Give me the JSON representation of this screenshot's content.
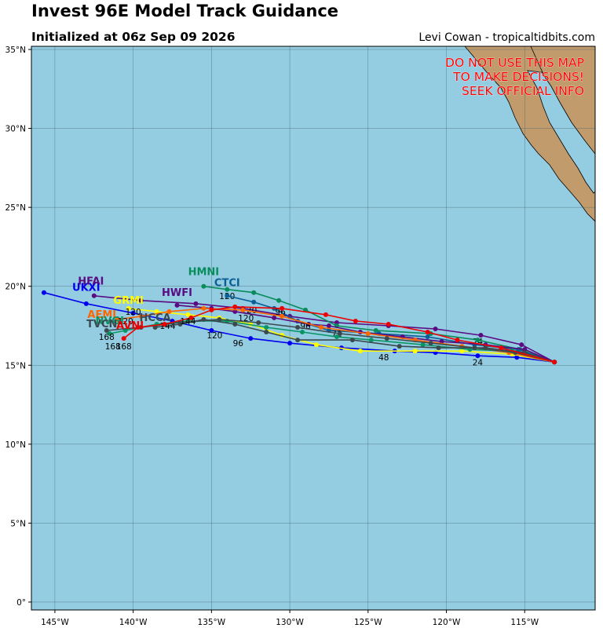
{
  "title": "Invest 96E Model Track Guidance",
  "subtitle": "Initialized at 06z Sep 09 2026",
  "credit": "Levi Cowan - tropicaltidbits.com",
  "warning": [
    "DO NOT USE THIS MAP",
    "TO MAKE DECISIONS!",
    "SEEK OFFICIAL INFO"
  ],
  "colors": {
    "ocean": "#94cde2",
    "land": "#c29b6c",
    "grid": "#4a6a75",
    "warning": "#ff0000"
  },
  "map_extent": {
    "lon": [
      -146.5,
      -110.5
    ],
    "lat": [
      -0.5,
      35.2
    ]
  },
  "xticks": [
    {
      "lon": -145,
      "label": "145°W"
    },
    {
      "lon": -140,
      "label": "140°W"
    },
    {
      "lon": -135,
      "label": "135°W"
    },
    {
      "lon": -130,
      "label": "130°W"
    },
    {
      "lon": -125,
      "label": "125°W"
    },
    {
      "lon": -120,
      "label": "120°W"
    },
    {
      "lon": -115,
      "label": "115°W"
    }
  ],
  "yticks": [
    {
      "lat": 0,
      "label": "0°"
    },
    {
      "lat": 5,
      "label": "5°N"
    },
    {
      "lat": 10,
      "label": "10°N"
    },
    {
      "lat": 15,
      "label": "15°N"
    },
    {
      "lat": 20,
      "label": "20°N"
    },
    {
      "lat": 25,
      "label": "25°N"
    },
    {
      "lat": 30,
      "label": "30°N"
    },
    {
      "lat": 35,
      "label": "35°N"
    }
  ],
  "models": [
    {
      "name": "UKXI",
      "color": "#0000ee",
      "label_at": [
        -143.0,
        19.7
      ],
      "track": [
        [
          -113.1,
          15.2
        ],
        [
          -115.5,
          15.5
        ],
        [
          -118.0,
          15.6
        ],
        [
          -120.7,
          15.8
        ],
        [
          -123.3,
          15.9
        ],
        [
          -126.7,
          16.1
        ],
        [
          -130.0,
          16.4
        ],
        [
          -132.5,
          16.7
        ],
        [
          -135.0,
          17.2
        ],
        [
          -137.5,
          17.8
        ],
        [
          -140.0,
          18.3
        ],
        [
          -143.0,
          18.9
        ],
        [
          -145.7,
          19.6
        ]
      ],
      "hours": [
        {
          "t": "24",
          "at": [
            -118.0,
            15.0
          ]
        },
        {
          "t": "48",
          "at": [
            -124.0,
            15.3
          ]
        },
        {
          "t": "96",
          "at": [
            -133.3,
            16.2
          ]
        },
        {
          "t": "120",
          "at": [
            -134.8,
            16.7
          ]
        }
      ]
    },
    {
      "name": "HFAI",
      "color": "#5a0a82",
      "label_at": [
        -142.7,
        20.1
      ],
      "track": [
        [
          -113.1,
          15.2
        ],
        [
          -115.2,
          16.3
        ],
        [
          -117.8,
          16.9
        ],
        [
          -120.7,
          17.3
        ],
        [
          -123.7,
          17.5
        ],
        [
          -127.0,
          17.7
        ],
        [
          -130.0,
          18.1
        ],
        [
          -133.0,
          18.6
        ],
        [
          -136.0,
          18.9
        ],
        [
          -139.5,
          19.1
        ],
        [
          -142.5,
          19.4
        ]
      ],
      "hours": [
        {
          "t": "24",
          "at": [
            -118.0,
            16.3
          ]
        }
      ]
    },
    {
      "name": "HMNI",
      "color": "#088c5a",
      "label_at": [
        -135.5,
        20.7
      ],
      "track": [
        [
          -113.1,
          15.2
        ],
        [
          -115.3,
          16.0
        ],
        [
          -118.0,
          16.6
        ],
        [
          -121.0,
          17.0
        ],
        [
          -124.5,
          17.2
        ],
        [
          -127.0,
          17.5
        ],
        [
          -129.0,
          18.5
        ],
        [
          -130.7,
          19.1
        ],
        [
          -132.3,
          19.6
        ],
        [
          -134.0,
          19.8
        ],
        [
          -135.5,
          20.0
        ]
      ],
      "hours": [
        {
          "t": "120",
          "at": [
            -134.0,
            19.2
          ]
        }
      ]
    },
    {
      "name": "CTCI",
      "color": "#0a5f96",
      "label_at": [
        -134.0,
        20.0
      ],
      "track": [
        [
          -113.1,
          15.2
        ],
        [
          -115.4,
          16.0
        ],
        [
          -118.2,
          16.3
        ],
        [
          -121.2,
          16.8
        ],
        [
          -124.3,
          17.0
        ],
        [
          -127.5,
          17.2
        ],
        [
          -129.5,
          17.8
        ],
        [
          -131.0,
          18.6
        ],
        [
          -132.3,
          19.0
        ],
        [
          -134.0,
          19.4
        ]
      ],
      "hours": [
        {
          "t": "96",
          "at": [
            -130.6,
            18.2
          ]
        },
        {
          "t": "120",
          "at": [
            -132.6,
            18.3
          ]
        }
      ]
    },
    {
      "name": "HWFI",
      "color": "#5a0a82",
      "label_at": [
        -137.2,
        19.4
      ],
      "track": [
        [
          -113.1,
          15.2
        ],
        [
          -115.0,
          16.0
        ],
        [
          -117.5,
          16.3
        ],
        [
          -120.3,
          16.5
        ],
        [
          -122.8,
          16.8
        ],
        [
          -125.5,
          17.1
        ],
        [
          -127.5,
          17.5
        ],
        [
          -128.8,
          17.6
        ],
        [
          -131.0,
          18.0
        ],
        [
          -133.5,
          18.4
        ],
        [
          -135.0,
          18.6
        ],
        [
          -137.2,
          18.8
        ]
      ],
      "hours": [
        {
          "t": "72",
          "at": [
            -127.0,
            16.8
          ]
        },
        {
          "t": "96",
          "at": [
            -129.0,
            17.3
          ]
        },
        {
          "t": "120",
          "at": [
            -132.8,
            17.8
          ]
        }
      ]
    },
    {
      "name": "GRMI",
      "color": "#ffff00",
      "label_at": [
        -140.3,
        18.9
      ],
      "track": [
        [
          -113.1,
          15.2
        ],
        [
          -115.8,
          15.7
        ],
        [
          -119.0,
          15.9
        ],
        [
          -122.0,
          15.9
        ],
        [
          -125.5,
          15.9
        ],
        [
          -128.3,
          16.3
        ],
        [
          -130.5,
          16.9
        ],
        [
          -132.5,
          17.6
        ],
        [
          -134.5,
          18.0
        ],
        [
          -136.5,
          18.2
        ],
        [
          -138.5,
          18.4
        ],
        [
          -140.3,
          18.6
        ]
      ],
      "hours": [
        {
          "t": "120",
          "at": [
            -140.0,
            18.2
          ]
        }
      ]
    },
    {
      "name": "AEMI",
      "color": "#ff6600",
      "label_at": [
        -142.0,
        18.0
      ],
      "track": [
        [
          -113.1,
          15.2
        ],
        [
          -116.0,
          15.8
        ],
        [
          -119.0,
          16.2
        ],
        [
          -122.0,
          16.6
        ],
        [
          -125.0,
          17.0
        ],
        [
          -128.0,
          17.4
        ],
        [
          -130.5,
          18.1
        ],
        [
          -133.0,
          18.5
        ],
        [
          -135.5,
          18.6
        ],
        [
          -137.7,
          18.4
        ],
        [
          -139.5,
          18.1
        ],
        [
          -141.0,
          17.9
        ]
      ],
      "hours": [
        {
          "t": "120",
          "at": [
            -140.5,
            17.6
          ]
        }
      ]
    },
    {
      "name": "NVGI",
      "color": "#0a9664",
      "label_at": [
        -141.5,
        17.6
      ],
      "track": [
        [
          -113.1,
          15.2
        ],
        [
          -115.8,
          15.9
        ],
        [
          -118.5,
          16.0
        ],
        [
          -121.5,
          16.3
        ],
        [
          -124.8,
          16.6
        ],
        [
          -127.0,
          16.8
        ],
        [
          -129.2,
          17.1
        ],
        [
          -131.5,
          17.4
        ],
        [
          -134.0,
          17.8
        ],
        [
          -136.5,
          17.8
        ],
        [
          -138.5,
          17.6
        ],
        [
          -140.5,
          17.2
        ],
        [
          -141.5,
          17.0
        ]
      ],
      "hours": [
        {
          "t": "168",
          "at": [
            -141.7,
            16.6
          ]
        }
      ]
    },
    {
      "name": "HCCA",
      "color": "#3a4a4e",
      "label_at": [
        -138.6,
        17.8
      ],
      "track": [
        [
          -113.1,
          15.2
        ],
        [
          -115.0,
          15.8
        ],
        [
          -117.5,
          16.1
        ],
        [
          -120.5,
          16.1
        ],
        [
          -123.0,
          16.2
        ],
        [
          -126.0,
          16.6
        ],
        [
          -129.5,
          16.6
        ],
        [
          -131.5,
          17.1
        ],
        [
          -133.5,
          17.6
        ],
        [
          -135.5,
          17.9
        ],
        [
          -137.0,
          17.6
        ],
        [
          -138.6,
          17.4
        ]
      ],
      "hours": [
        {
          "t": "144",
          "at": [
            -137.8,
            17.3
          ]
        }
      ]
    },
    {
      "name": "TVCN",
      "color": "#3a4a4e",
      "label_at": [
        -142.0,
        17.4
      ],
      "track": [
        [
          -113.1,
          15.2
        ],
        [
          -115.6,
          15.8
        ],
        [
          -118.2,
          16.1
        ],
        [
          -121.0,
          16.4
        ],
        [
          -123.8,
          16.7
        ],
        [
          -126.8,
          17.0
        ],
        [
          -129.5,
          17.4
        ],
        [
          -132.0,
          17.7
        ],
        [
          -134.5,
          17.9
        ],
        [
          -137.0,
          17.7
        ],
        [
          -139.5,
          17.4
        ],
        [
          -141.7,
          17.2
        ]
      ],
      "hours": [
        {
          "t": "168",
          "at": [
            -141.3,
            16.0
          ]
        }
      ]
    },
    {
      "name": "AVNI",
      "color": "#ee0000",
      "label_at": [
        -140.2,
        17.3
      ],
      "track": [
        [
          -113.1,
          15.2
        ],
        [
          -116.5,
          16.1
        ],
        [
          -119.3,
          16.6
        ],
        [
          -121.2,
          17.1
        ],
        [
          -123.7,
          17.6
        ],
        [
          -125.8,
          17.8
        ],
        [
          -127.7,
          18.2
        ],
        [
          -130.5,
          18.6
        ],
        [
          -133.5,
          18.7
        ],
        [
          -135.0,
          18.5
        ],
        [
          -136.3,
          18.0
        ],
        [
          -138.0,
          17.6
        ],
        [
          -139.7,
          17.4
        ],
        [
          -140.6,
          16.7
        ]
      ],
      "hours": [
        {
          "t": "144",
          "at": [
            -136.5,
            17.6
          ]
        },
        {
          "t": "168",
          "at": [
            -140.6,
            16.0
          ]
        }
      ]
    }
  ]
}
